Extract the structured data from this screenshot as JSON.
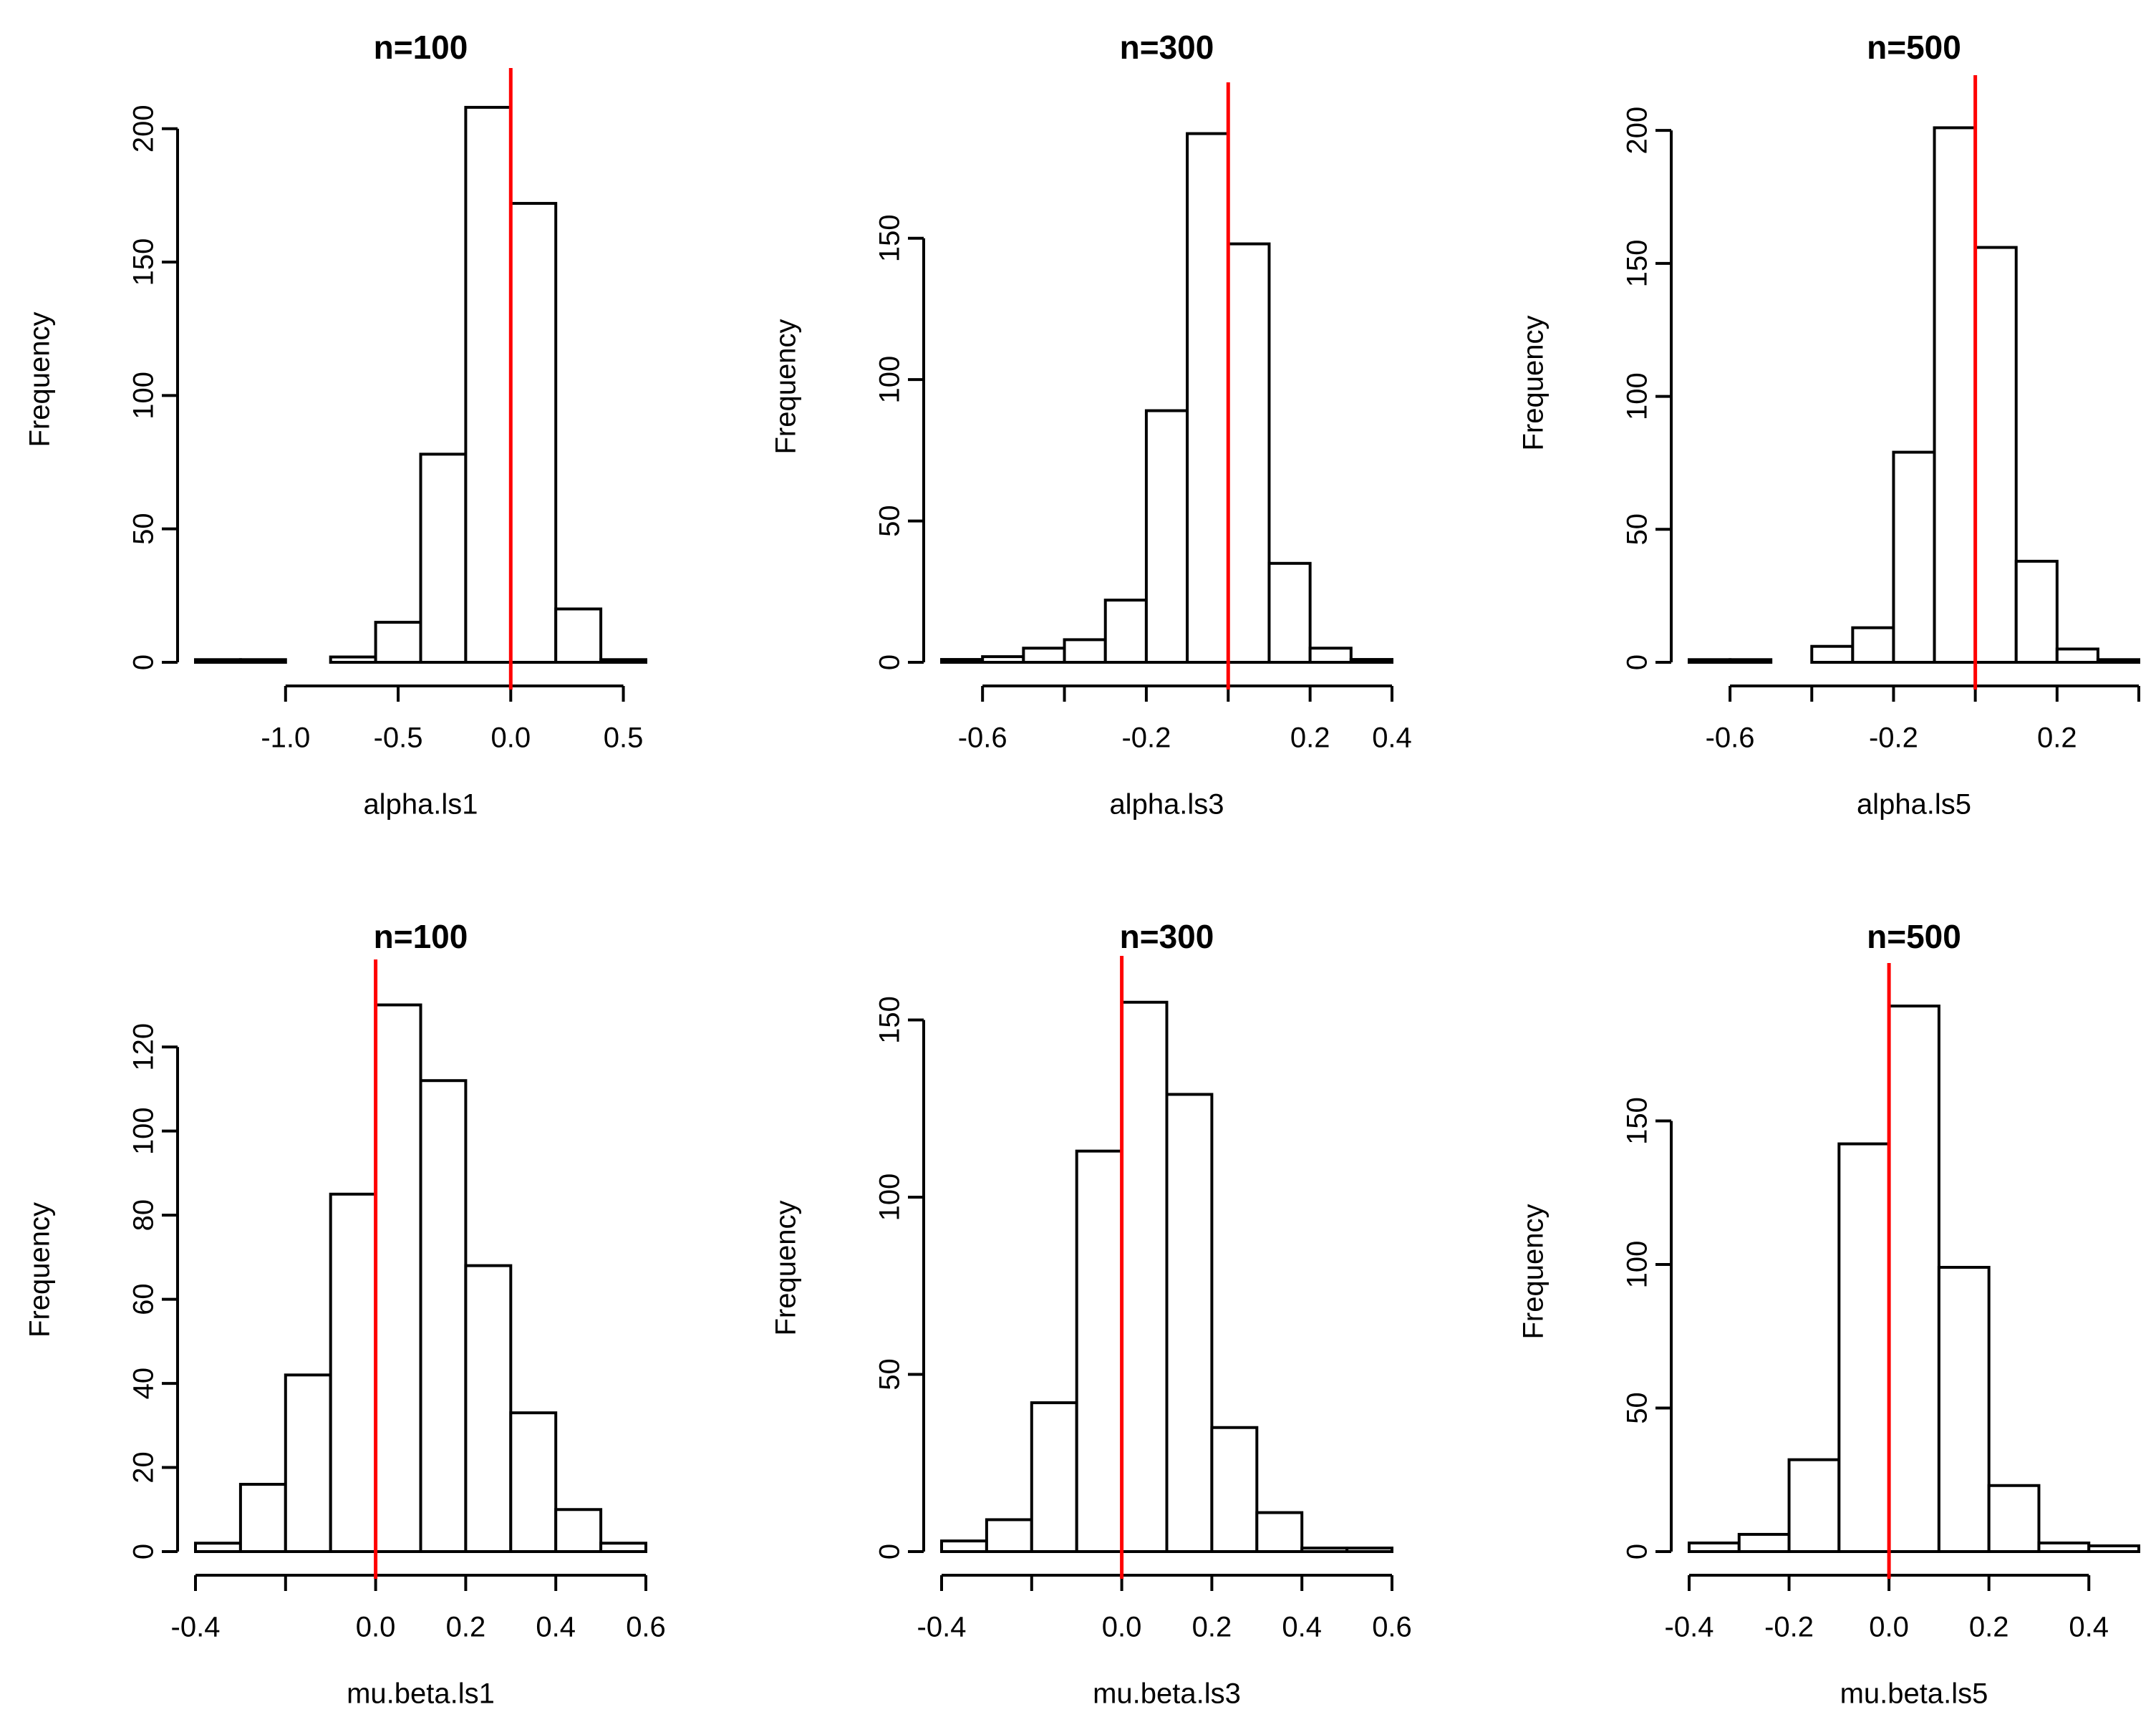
{
  "chart_data": [
    {
      "type": "bar",
      "title": "n=100",
      "xlabel": "alpha.ls1",
      "ylabel": "Frequency",
      "bin_edges": [
        -1.4,
        -1.2,
        -1.0,
        -0.8,
        -0.6,
        -0.4,
        -0.2,
        0.0,
        0.2,
        0.4,
        0.6
      ],
      "counts": [
        1,
        1,
        0,
        2,
        15,
        78,
        208,
        172,
        20,
        1
      ],
      "xticks": [
        -1.0,
        -0.5,
        0.0,
        0.5
      ],
      "xtick_labels": [
        "-1.0",
        "-0.5",
        "0.0",
        "0.5"
      ],
      "yticks": [
        0,
        50,
        100,
        150,
        200
      ],
      "ytick_labels": [
        "0",
        "50",
        "100",
        "150",
        "200"
      ],
      "reference_line": 0.0
    },
    {
      "type": "bar",
      "title": "n=300",
      "xlabel": "alpha.ls3",
      "ylabel": "Frequency",
      "bin_edges": [
        -0.7,
        -0.6,
        -0.5,
        -0.4,
        -0.3,
        -0.2,
        -0.1,
        0.0,
        0.1,
        0.2,
        0.3,
        0.4
      ],
      "counts": [
        1,
        2,
        5,
        8,
        22,
        89,
        187,
        148,
        35,
        5,
        1
      ],
      "xticks": [
        -0.6,
        -0.4,
        -0.2,
        0.0,
        0.2,
        0.4
      ],
      "xtick_labels": [
        "-0.6",
        "",
        "-0.2",
        "",
        "0.2",
        "0.4"
      ],
      "yticks": [
        0,
        50,
        100,
        150
      ],
      "ytick_labels": [
        "0",
        "50",
        "100",
        "150"
      ],
      "reference_line": 0.0
    },
    {
      "type": "bar",
      "title": "n=500",
      "xlabel": "alpha.ls5",
      "ylabel": "Frequency",
      "bin_edges": [
        -0.7,
        -0.6,
        -0.5,
        -0.4,
        -0.3,
        -0.2,
        -0.1,
        0.0,
        0.1,
        0.2,
        0.3,
        0.4
      ],
      "counts": [
        1,
        1,
        0,
        6,
        13,
        79,
        201,
        156,
        38,
        5,
        1
      ],
      "xticks": [
        -0.6,
        -0.4,
        -0.2,
        0.0,
        0.2,
        0.4
      ],
      "xtick_labels": [
        "-0.6",
        "",
        "-0.2",
        "",
        "0.2",
        ""
      ],
      "yticks": [
        0,
        50,
        100,
        150,
        200
      ],
      "ytick_labels": [
        "0",
        "50",
        "100",
        "150",
        "200"
      ],
      "reference_line": 0.0
    },
    {
      "type": "bar",
      "title": "n=100",
      "xlabel": "mu.beta.ls1",
      "ylabel": "Frequency",
      "bin_edges": [
        -0.4,
        -0.3,
        -0.2,
        -0.1,
        0.0,
        0.1,
        0.2,
        0.3,
        0.4,
        0.5,
        0.6
      ],
      "counts": [
        2,
        16,
        42,
        85,
        130,
        112,
        68,
        33,
        10,
        2
      ],
      "xticks": [
        -0.4,
        -0.2,
        0.0,
        0.2,
        0.4,
        0.6
      ],
      "xtick_labels": [
        "-0.4",
        "",
        "0.0",
        "0.2",
        "0.4",
        "0.6"
      ],
      "yticks": [
        0,
        20,
        40,
        60,
        80,
        100,
        120
      ],
      "ytick_labels": [
        "0",
        "20",
        "40",
        "60",
        "80",
        "100",
        "120"
      ],
      "reference_line": 0.0
    },
    {
      "type": "bar",
      "title": "n=300",
      "xlabel": "mu.beta.ls3",
      "ylabel": "Frequency",
      "bin_edges": [
        -0.4,
        -0.3,
        -0.2,
        -0.1,
        0.0,
        0.1,
        0.2,
        0.3,
        0.4,
        0.5,
        0.6
      ],
      "counts": [
        3,
        9,
        42,
        113,
        155,
        129,
        35,
        11,
        1,
        1
      ],
      "xticks": [
        -0.4,
        -0.2,
        0.0,
        0.2,
        0.4,
        0.6
      ],
      "xtick_labels": [
        "-0.4",
        "",
        "0.0",
        "0.2",
        "0.4",
        "0.6"
      ],
      "yticks": [
        0,
        50,
        100,
        150
      ],
      "ytick_labels": [
        "0",
        "50",
        "100",
        "150"
      ],
      "reference_line": 0.0
    },
    {
      "type": "bar",
      "title": "n=500",
      "xlabel": "mu.beta.ls5",
      "ylabel": "Frequency",
      "bin_edges": [
        -0.4,
        -0.3,
        -0.2,
        -0.1,
        0.0,
        0.1,
        0.2,
        0.3,
        0.4,
        0.5
      ],
      "counts": [
        3,
        6,
        32,
        142,
        190,
        99,
        23,
        3,
        2
      ],
      "xticks": [
        -0.4,
        -0.2,
        0.0,
        0.2,
        0.4
      ],
      "xtick_labels": [
        "-0.4",
        "-0.2",
        "0.0",
        "0.2",
        "0.4"
      ],
      "yticks": [
        0,
        50,
        100,
        150
      ],
      "ytick_labels": [
        "0",
        "50",
        "100",
        "150"
      ],
      "reference_line": 0.0
    }
  ]
}
